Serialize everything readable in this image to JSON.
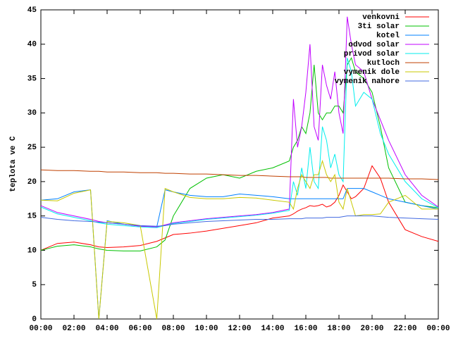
{
  "chart_data": {
    "type": "line",
    "ylabel": "teplota ve C",
    "x": [
      0,
      1,
      2,
      3,
      3.5,
      4,
      5,
      6,
      7,
      7.5,
      8,
      9,
      10,
      11,
      12,
      13,
      14,
      15,
      15.25,
      15.5,
      15.75,
      16,
      16.25,
      16.5,
      16.75,
      17,
      17.25,
      17.5,
      17.75,
      18,
      18.25,
      18.5,
      18.75,
      19,
      19.5,
      20,
      20.5,
      21,
      22,
      23,
      24
    ],
    "xlim": [
      0,
      24
    ],
    "xticks": [
      {
        "value": 0,
        "label": "00:00"
      },
      {
        "value": 2,
        "label": "02:00"
      },
      {
        "value": 4,
        "label": "04:00"
      },
      {
        "value": 6,
        "label": "06:00"
      },
      {
        "value": 8,
        "label": "08:00"
      },
      {
        "value": 10,
        "label": "10:00"
      },
      {
        "value": 12,
        "label": "12:00"
      },
      {
        "value": 14,
        "label": "14:00"
      },
      {
        "value": 16,
        "label": "16:00"
      },
      {
        "value": 18,
        "label": "18:00"
      },
      {
        "value": 20,
        "label": "20:00"
      },
      {
        "value": 22,
        "label": "22:00"
      },
      {
        "value": 24,
        "label": "00:00"
      }
    ],
    "ylim": [
      0,
      45
    ],
    "yticks": [
      0,
      5,
      10,
      15,
      20,
      25,
      30,
      35,
      40,
      45
    ],
    "legend": "top-right",
    "series": [
      {
        "name": "venkovni",
        "color": "#ff0000",
        "values": [
          10,
          11,
          11.2,
          10.8,
          10.5,
          10.4,
          10.5,
          10.7,
          11.3,
          11.8,
          12.3,
          12.5,
          12.8,
          13.2,
          13.6,
          14,
          14.7,
          15,
          15.3,
          15.7,
          16,
          16.2,
          16.5,
          16.4,
          16.5,
          16.7,
          16.3,
          16.5,
          17,
          18,
          19.5,
          18.5,
          17.5,
          17.8,
          19,
          22.3,
          20.5,
          17,
          13,
          12,
          11.3
        ]
      },
      {
        "name": "3ti solar",
        "color": "#00c000",
        "values": [
          10,
          10.6,
          10.8,
          10.5,
          10.2,
          10,
          9.9,
          9.9,
          10.5,
          11.5,
          15,
          19,
          20.5,
          21,
          20.5,
          21.5,
          22,
          23,
          25,
          26,
          28,
          27,
          30,
          37,
          30,
          29,
          30,
          30,
          31,
          31,
          30,
          37,
          38,
          36,
          35,
          33,
          28,
          22,
          17,
          16.5,
          16.2
        ]
      },
      {
        "name": "kotel",
        "color": "#0080ff",
        "values": [
          17.3,
          17.5,
          18.5,
          18.8,
          0,
          14.3,
          13.8,
          13.5,
          13.4,
          18.8,
          18.5,
          18,
          17.8,
          17.8,
          18.2,
          18,
          17.8,
          17.5,
          17.5,
          17.5,
          17.5,
          17.5,
          17.5,
          17.5,
          17.5,
          17.5,
          17.5,
          17.5,
          17.5,
          17.5,
          17.5,
          19,
          19,
          19,
          19,
          18.5,
          18,
          17.5,
          17,
          16.5,
          16
        ]
      },
      {
        "name": "odvod solar",
        "color": "#c000ff",
        "values": [
          16.5,
          15.5,
          15,
          14.5,
          14.2,
          14,
          13.8,
          13.5,
          13.4,
          13.7,
          14,
          14.3,
          14.6,
          14.8,
          15,
          15.2,
          15.5,
          16,
          32,
          25,
          28,
          33,
          40,
          28,
          26,
          37,
          34,
          32,
          36,
          30,
          27,
          44,
          40,
          37,
          36,
          32,
          29,
          26,
          21,
          18,
          16.3
        ]
      },
      {
        "name": "privod solar",
        "color": "#00eeee",
        "values": [
          16.3,
          15.3,
          14.8,
          14.3,
          14,
          13.8,
          13.6,
          13.4,
          13.3,
          13.6,
          13.9,
          14.2,
          14.5,
          14.7,
          14.9,
          15.1,
          15.4,
          15.8,
          20,
          18,
          22,
          19,
          25,
          20,
          19,
          28,
          26,
          22,
          24,
          21,
          20,
          38,
          36,
          31,
          33,
          32,
          27,
          24,
          20,
          17.5,
          16.2
        ]
      },
      {
        "name": "kutloch",
        "color": "#c04000",
        "values": [
          21.7,
          21.6,
          21.6,
          21.5,
          21.5,
          21.4,
          21.4,
          21.3,
          21.3,
          21.2,
          21.2,
          21.1,
          21.1,
          21,
          20.9,
          20.9,
          20.8,
          20.7,
          20.7,
          20.7,
          20.7,
          20.6,
          20.6,
          20.6,
          20.6,
          20.6,
          20.6,
          20.5,
          20.5,
          20.5,
          20.5,
          20.5,
          20.5,
          20.5,
          20.5,
          20.5,
          20.5,
          20.5,
          20.4,
          20.4,
          20.3
        ]
      },
      {
        "name": "vymenik dole",
        "color": "#c8c800",
        "values": [
          17.3,
          17.2,
          18.3,
          18.8,
          0,
          14.2,
          14,
          13.6,
          0,
          19,
          18.5,
          17.7,
          17.5,
          17.5,
          17.7,
          17.6,
          17.3,
          17,
          16,
          19,
          21,
          20,
          19,
          21,
          21,
          23,
          21,
          20,
          21,
          17,
          16,
          19,
          17,
          15,
          15.2,
          15.2,
          15.3,
          17,
          18,
          16,
          16
        ]
      },
      {
        "name": "vymenik nahore",
        "color": "#4169e1",
        "values": [
          14.8,
          14.5,
          14.3,
          14.2,
          14.1,
          14,
          13.8,
          13.6,
          13.5,
          13.6,
          13.8,
          14,
          14.2,
          14.3,
          14.4,
          14.5,
          14.5,
          14.6,
          14.6,
          14.6,
          14.6,
          14.7,
          14.7,
          14.7,
          14.7,
          14.7,
          14.8,
          14.8,
          14.8,
          14.8,
          14.9,
          15,
          15,
          15,
          15,
          15,
          14.9,
          14.8,
          14.7,
          14.6,
          14.5
        ]
      }
    ]
  }
}
